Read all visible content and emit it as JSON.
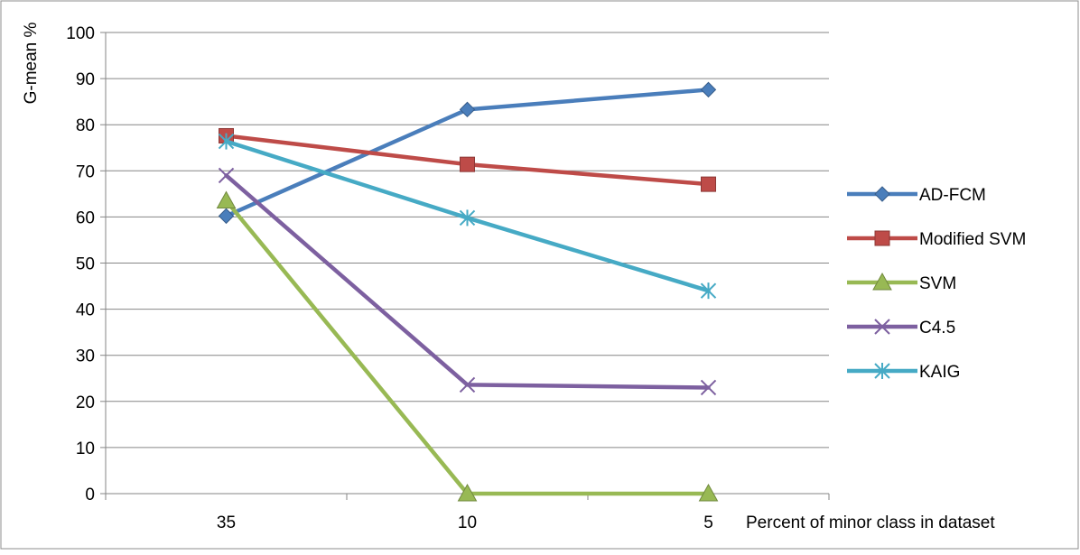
{
  "chart_data": {
    "type": "line",
    "categories": [
      "35",
      "10",
      "5"
    ],
    "xlabel": "Percent of minor class in dataset",
    "ylabel": "G-mean %",
    "ylim": [
      0,
      100
    ],
    "yticks": [
      "0",
      "10",
      "20",
      "30",
      "40",
      "50",
      "60",
      "70",
      "80",
      "90",
      "100"
    ],
    "grid": "horizontal",
    "legend_position": "right",
    "series": [
      {
        "name": "AD-FCM",
        "values": [
          60.2,
          83.3,
          87.6
        ],
        "color": "#4A7EBB",
        "marker": "diamond"
      },
      {
        "name": "Modified SVM",
        "values": [
          77.6,
          71.4,
          67.1
        ],
        "color": "#BE4B48",
        "marker": "square"
      },
      {
        "name": "SVM",
        "values": [
          63.5,
          0,
          0
        ],
        "color": "#98B954",
        "marker": "triangle"
      },
      {
        "name": "C4.5",
        "values": [
          69.0,
          23.6,
          23.0
        ],
        "color": "#7D60A0",
        "marker": "x"
      },
      {
        "name": "KAIG",
        "values": [
          76.4,
          59.8,
          44.0
        ],
        "color": "#46AAC5",
        "marker": "star"
      }
    ]
  }
}
